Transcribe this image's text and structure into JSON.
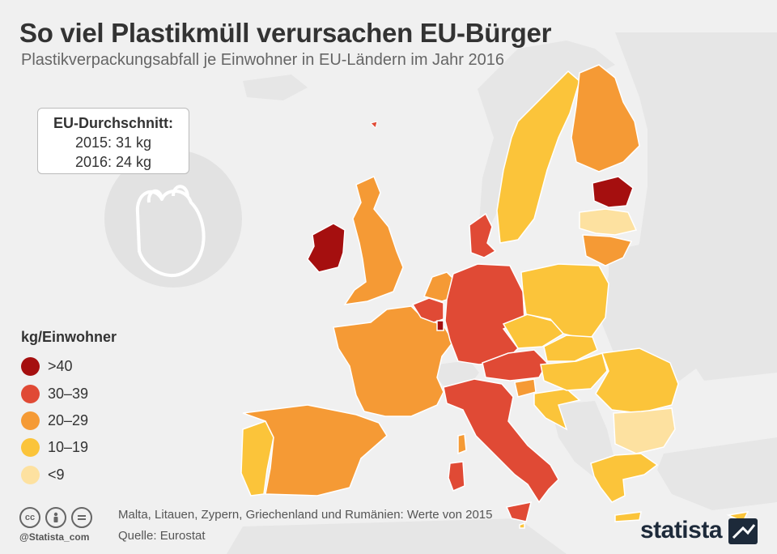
{
  "header": {
    "title": "So viel Plastikmüll verursachen EU-Bürger",
    "subtitle": "Plastikverpackungsabfall je Einwohner in EU-Ländern im Jahr 2016"
  },
  "average_box": {
    "title": "EU-Durchschnitt:",
    "line_2015": "2015: 31 kg",
    "line_2016": "2016: 24 kg"
  },
  "legend": {
    "title": "kg/Einwohner",
    "items": [
      {
        "label": ">40",
        "color": "#a50f0f"
      },
      {
        "label": "30–39",
        "color": "#e04a35"
      },
      {
        "label": "20–29",
        "color": "#f59a35"
      },
      {
        "label": "10–19",
        "color": "#fbc43a"
      },
      {
        "label": "<9",
        "color": "#fde1a0"
      }
    ]
  },
  "map_data": {
    "category_colors": {
      ">40": "#a50f0f",
      "30–39": "#e04a35",
      "20–29": "#f59a35",
      "10–19": "#fbc43a",
      "<9": "#fde1a0",
      "non_eu": "#e6e6e6",
      "no_data": "#d5d5d5"
    },
    "countries": [
      {
        "name": "Irland",
        "category": ">40"
      },
      {
        "name": "Estland",
        "category": ">40"
      },
      {
        "name": "Luxemburg",
        "category": ">40"
      },
      {
        "name": "Deutschland",
        "category": "30–39"
      },
      {
        "name": "Italien",
        "category": "30–39"
      },
      {
        "name": "Österreich",
        "category": "30–39"
      },
      {
        "name": "Belgien",
        "category": "30–39"
      },
      {
        "name": "Dänemark",
        "category": "30–39"
      },
      {
        "name": "Frankreich",
        "category": "20–29"
      },
      {
        "name": "Spanien",
        "category": "20–29"
      },
      {
        "name": "Vereinigtes Königreich",
        "category": "20–29"
      },
      {
        "name": "Niederlande",
        "category": "20–29"
      },
      {
        "name": "Finnland",
        "category": "20–29"
      },
      {
        "name": "Litauen",
        "category": "20–29"
      },
      {
        "name": "Slowenien",
        "category": "20–29"
      },
      {
        "name": "Portugal",
        "category": "10–19"
      },
      {
        "name": "Schweden",
        "category": "10–19"
      },
      {
        "name": "Polen",
        "category": "10–19"
      },
      {
        "name": "Tschechien",
        "category": "10–19"
      },
      {
        "name": "Slowakei",
        "category": "10–19"
      },
      {
        "name": "Ungarn",
        "category": "10–19"
      },
      {
        "name": "Rumänien",
        "category": "10–19"
      },
      {
        "name": "Griechenland",
        "category": "10–19"
      },
      {
        "name": "Kroatien",
        "category": "10–19"
      },
      {
        "name": "Zypern",
        "category": "10–19"
      },
      {
        "name": "Malta",
        "category": "10–19"
      },
      {
        "name": "Lettland",
        "category": "<9"
      },
      {
        "name": "Bulgarien",
        "category": "<9"
      }
    ]
  },
  "footer": {
    "note": "Malta, Litauen, Zypern, Griechenland und Rumänien: Werte von 2015",
    "source": "Quelle: Eurostat",
    "handle": "@Statista_com",
    "brand": "statista",
    "license_icons": [
      "cc-icon",
      "person-icon",
      "equals-icon"
    ]
  }
}
